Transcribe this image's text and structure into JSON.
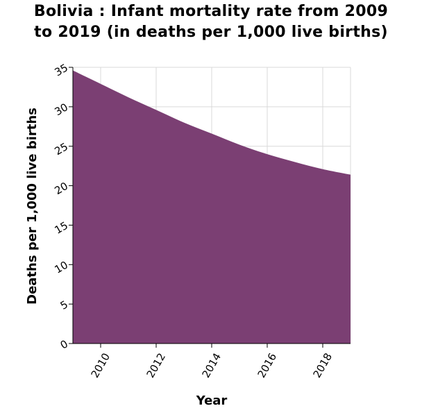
{
  "chart_data": {
    "type": "area",
    "title": "Bolivia : Infant mortality rate from 2009 to 2019 (in deaths per 1,000 live births)",
    "title_lines": [
      "Bolivia : Infant mortality rate from 2009",
      "to 2019 (in deaths per 1,000 live births)"
    ],
    "xlabel": "Year",
    "ylabel": "Deaths per 1,000 live births",
    "x": [
      2009,
      2010,
      2011,
      2012,
      2013,
      2014,
      2015,
      2016,
      2017,
      2018,
      2019
    ],
    "values": [
      34.6,
      32.9,
      31.2,
      29.6,
      28.0,
      26.6,
      25.2,
      24.0,
      23.0,
      22.1,
      21.4
    ],
    "xlim": [
      2009,
      2019
    ],
    "ylim": [
      0,
      35
    ],
    "xticks": [
      2010,
      2012,
      2014,
      2016,
      2018
    ],
    "yticks": [
      0,
      5,
      10,
      15,
      20,
      25,
      30,
      35
    ],
    "grid": true,
    "colors": {
      "fill": "#7b3f73",
      "grid": "#d9d9d9",
      "axis": "#000000"
    }
  }
}
